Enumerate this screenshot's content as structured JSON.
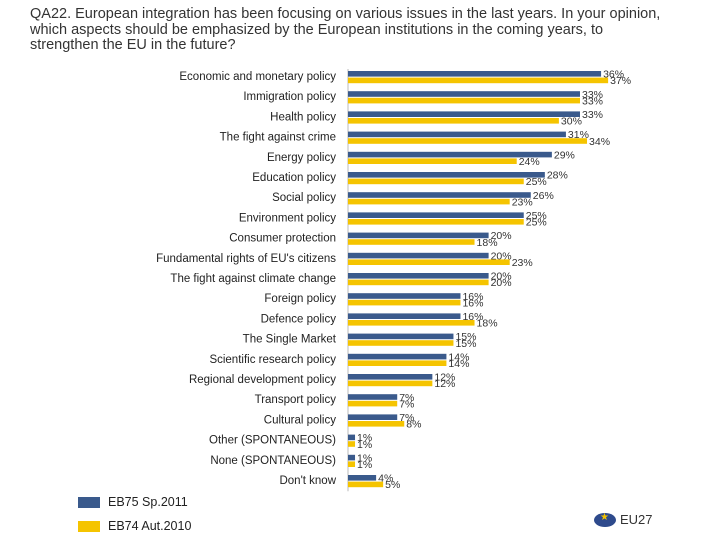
{
  "question": "QA22. European integration has been focusing on various issues in the last years. In your opinion, which aspects should be emphasized by the European institutions in the coming years, to strengthen the EU in the future?",
  "region": "EU27",
  "colors": {
    "series1": "#3a5a8c",
    "series2": "#f5c400"
  },
  "chart_data": {
    "type": "bar",
    "orientation": "horizontal",
    "categories": [
      "Economic and monetary policy",
      "Immigration policy",
      "Health policy",
      "The fight against crime",
      "Energy policy",
      "Education policy",
      "Social policy",
      "Environment policy",
      "Consumer protection",
      "Fundamental rights of EU's citizens",
      "The fight against climate change",
      "Foreign policy",
      "Defence policy",
      "The Single Market",
      "Scientific research policy",
      "Regional development policy",
      "Transport policy",
      "Cultural policy",
      "Other (SPONTANEOUS)",
      "None (SPONTANEOUS)",
      "Don't know"
    ],
    "series": [
      {
        "name": "EB75 Sp.2011",
        "color": "#3a5a8c",
        "values": [
          36,
          33,
          33,
          31,
          29,
          28,
          26,
          25,
          20,
          20,
          20,
          16,
          16,
          15,
          14,
          12,
          7,
          7,
          1,
          1,
          4
        ],
        "labels": [
          "36%",
          "33%",
          "33%",
          "31%",
          "29%",
          "28%",
          "26%",
          "25%",
          "20%",
          "20%",
          "20%",
          "16%",
          "16%",
          "15%",
          "14%",
          "12%",
          "7%",
          "7%",
          "1%",
          "1%",
          "4%"
        ]
      },
      {
        "name": "EB74 Aut.2010",
        "color": "#f5c400",
        "values": [
          37,
          33,
          30,
          34,
          24,
          25,
          23,
          25,
          18,
          23,
          20,
          16,
          18,
          15,
          14,
          12,
          7,
          8,
          1,
          1,
          5
        ],
        "labels": [
          "37%",
          "33%",
          "30%",
          "34%",
          "24%",
          "25%",
          "23%",
          "25%",
          "18%",
          "23%",
          "20%",
          "16%",
          "18%",
          "15%",
          "14%",
          "12%",
          "7%",
          "8%",
          "1%",
          "1%",
          "5%"
        ]
      }
    ],
    "legend_position": "bottom-left",
    "grid": false
  }
}
